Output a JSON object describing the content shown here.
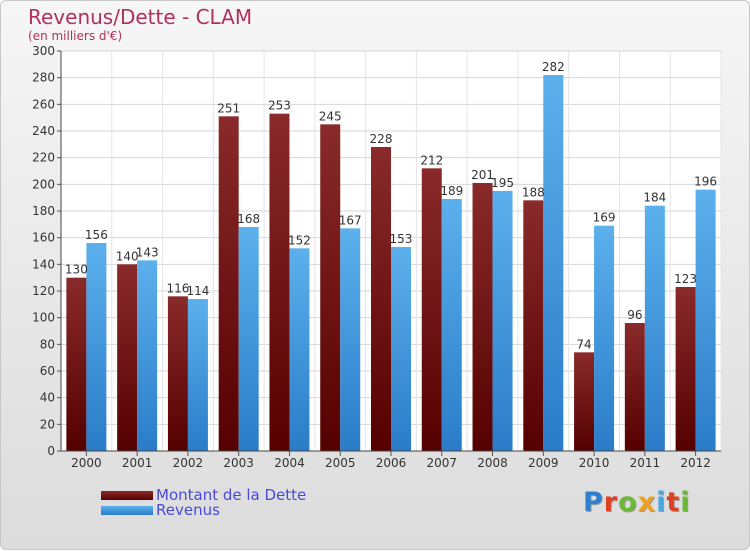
{
  "header": {
    "title": "Revenus/Dette - CLAM",
    "subtitle": "(en milliers d'€)"
  },
  "logo": {
    "text": "Proxiti",
    "letter_colors": [
      "#2f7fd0",
      "#e04020",
      "#6bb83a",
      "#f0a020",
      "#4aa8e0",
      "#e04020",
      "#6bb83a"
    ]
  },
  "legend": {
    "items": [
      {
        "label": "Montant de la Dette",
        "color": "#6b1010"
      },
      {
        "label": "Revenus",
        "color": "#3a96e0"
      }
    ]
  },
  "chart_data": {
    "type": "bar",
    "title": "Revenus/Dette - CLAM",
    "subtitle": "(en milliers d'€)",
    "categories": [
      "2000",
      "2001",
      "2002",
      "2003",
      "2004",
      "2005",
      "2006",
      "2007",
      "2008",
      "2009",
      "2010",
      "2011",
      "2012"
    ],
    "series": [
      {
        "name": "Montant de la Dette",
        "color": "#6b1010",
        "values": [
          130,
          140,
          116,
          251,
          253,
          245,
          228,
          212,
          201,
          188,
          74,
          96,
          123
        ]
      },
      {
        "name": "Revenus",
        "color": "#3a96e0",
        "values": [
          156,
          143,
          114,
          168,
          152,
          167,
          153,
          189,
          195,
          282,
          169,
          184,
          196
        ]
      }
    ],
    "ylim": [
      0,
      300
    ],
    "yticks": [
      0,
      20,
      40,
      60,
      80,
      100,
      120,
      140,
      160,
      180,
      200,
      220,
      240,
      260,
      280,
      300
    ],
    "grid": true,
    "legend_position": "bottom-left"
  }
}
